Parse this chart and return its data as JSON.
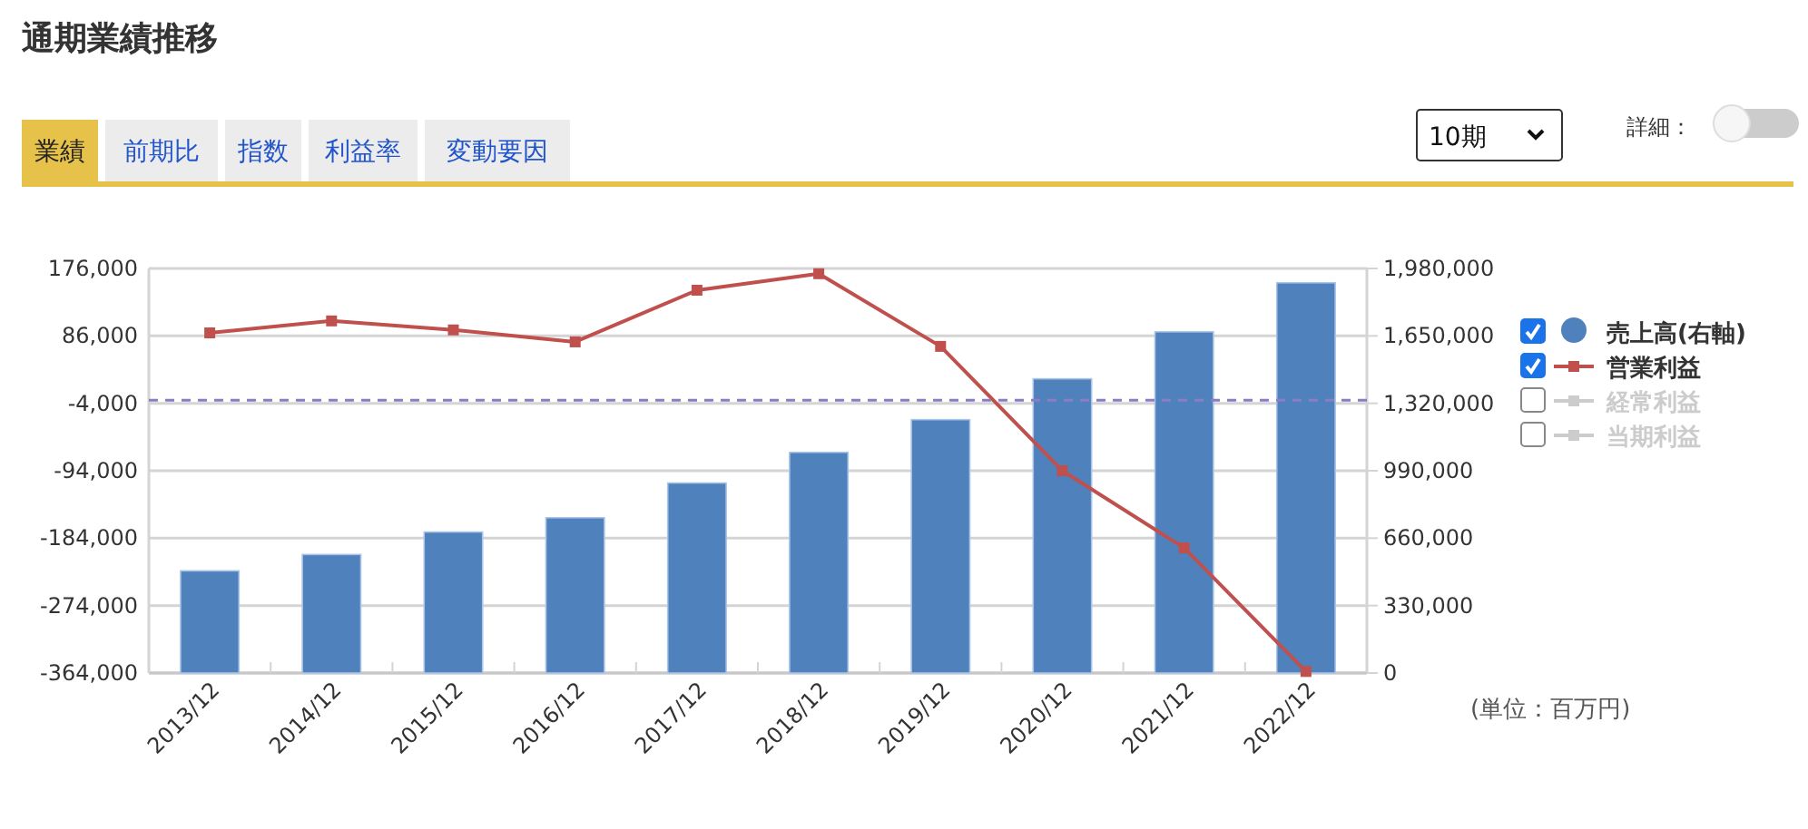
{
  "chart_data": {
    "type": "bar",
    "title": "通期業績推移",
    "categories": [
      "2013/12",
      "2014/12",
      "2015/12",
      "2016/12",
      "2017/12",
      "2018/12",
      "2019/12",
      "2020/12",
      "2021/12",
      "2022/12"
    ],
    "series": [
      {
        "name": "売上高(右軸)",
        "axis": "y2",
        "color": "#4f81bd",
        "values": [
          500000,
          580000,
          690000,
          760000,
          930000,
          1080000,
          1240000,
          1440000,
          1670000,
          1910000
        ]
      },
      {
        "name": "営業利益",
        "type": "line",
        "color": "#c0504d",
        "values": [
          90000,
          106000,
          94000,
          78000,
          147000,
          169000,
          72000,
          -94000,
          -197000,
          -362000
        ]
      },
      {
        "name": "経常利益",
        "type": "line",
        "color": "#cccccc",
        "values": [
          null,
          null,
          null,
          null,
          null,
          null,
          null,
          null,
          null,
          null
        ]
      },
      {
        "name": "当期利益",
        "type": "line",
        "color": "#cccccc",
        "values": [
          null,
          null,
          null,
          null,
          null,
          null,
          null,
          null,
          null,
          null
        ]
      }
    ],
    "ylim": [
      -364000,
      176000
    ],
    "yticks": [
      {
        "value": -364000,
        "label": "-364,000"
      },
      {
        "value": -274000,
        "label": "-274,000"
      },
      {
        "value": -184000,
        "label": "-184,000"
      },
      {
        "value": -94000,
        "label": "-94,000"
      },
      {
        "value": -4000,
        "label": "-4,000"
      },
      {
        "value": 86000,
        "label": "86,000"
      },
      {
        "value": 176000,
        "label": "176,000"
      }
    ],
    "y2lim": [
      0,
      1980000
    ],
    "y2ticks": [
      0,
      {
        "value": 330000,
        "label": "330,000"
      },
      {
        "value": 660000,
        "label": "660,000"
      },
      {
        "value": 990000,
        "label": "990,000"
      },
      {
        "value": 1320000,
        "label": "1,320,000"
      },
      {
        "value": 1650000,
        "label": "1,650,000"
      },
      {
        "value": 1980000,
        "label": "1,980,000"
      }
    ],
    "ref_lines": [
      {
        "axis": "y",
        "value": 0,
        "color": "#8e7cc3",
        "line_style": "dashed"
      }
    ],
    "grid": "y",
    "legend": "right",
    "marker": "square",
    "annotations": [
      "業績",
      "前期比",
      "指数",
      "利益率",
      "変動要因",
      "10期",
      "詳細：",
      "(単位：百万円)"
    ]
  }
}
